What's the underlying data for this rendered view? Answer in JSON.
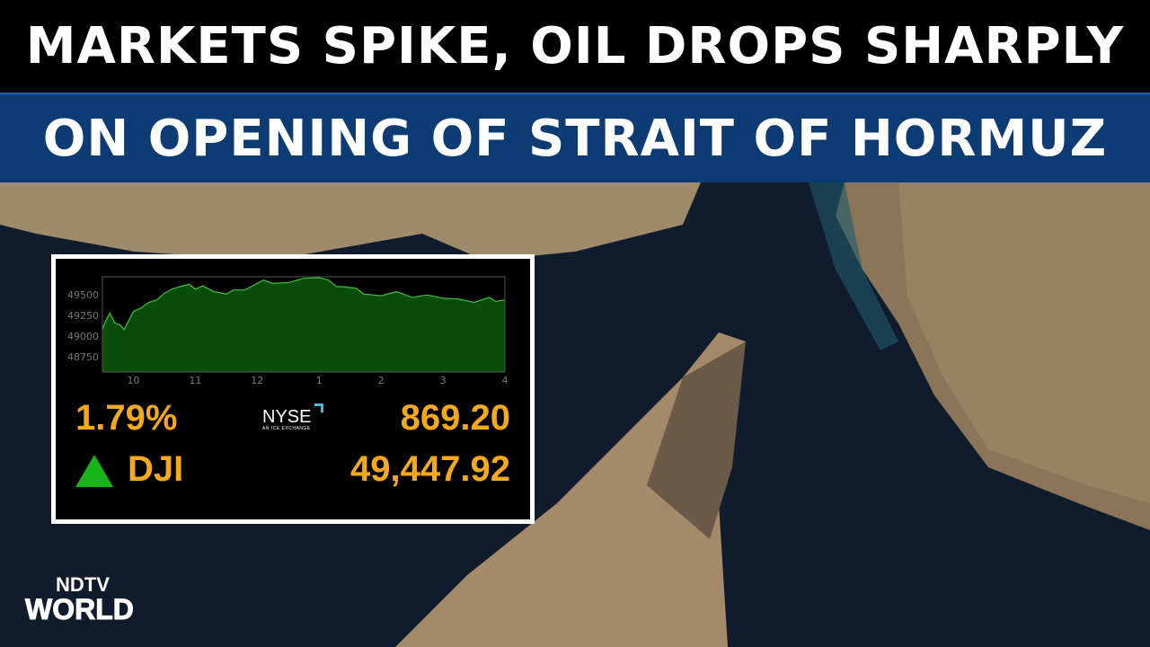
{
  "headline": {
    "line1": "MARKETS SPIKE, OIL DROPS SHARPLY",
    "line2": "ON OPENING OF STRAIT OF HORMUZ"
  },
  "ticker": {
    "change_pct": "1.79%",
    "price": "869.20",
    "symbol": "DJI",
    "index_value": "49,447.92",
    "exchange": "NYSE",
    "exchange_tagline": "AN ICE EXCHANGE",
    "direction": "up",
    "up_color": "#18b318",
    "value_color": "#f4a81c"
  },
  "logo": {
    "line1": "NDTV",
    "line2": "WORLD"
  },
  "chart_data": {
    "type": "area",
    "x_unit": "hour of day",
    "xticks": [
      {
        "x": 10,
        "label": "10"
      },
      {
        "x": 11,
        "label": "11"
      },
      {
        "x": 12,
        "label": "12"
      },
      {
        "x": 13,
        "label": "1"
      },
      {
        "x": 14,
        "label": "2"
      },
      {
        "x": 15,
        "label": "3"
      },
      {
        "x": 16,
        "label": "4"
      }
    ],
    "yticks": [
      48750,
      49000,
      49250,
      49500
    ],
    "xlim": [
      9.5,
      16
    ],
    "ylim": [
      48565,
      49720
    ],
    "fill_color": "#0a4d0a",
    "line_color": "#3fbf3f",
    "x": [
      9.5,
      9.55,
      9.62,
      9.7,
      9.78,
      9.85,
      9.92,
      10,
      10.12,
      10.25,
      10.38,
      10.5,
      10.62,
      10.75,
      10.9,
      11,
      11.12,
      11.3,
      11.5,
      11.62,
      11.8,
      12,
      12.1,
      12.25,
      12.5,
      12.75,
      13,
      13.15,
      13.28,
      13.38,
      13.6,
      13.72,
      14,
      14.25,
      14.5,
      14.75,
      15,
      15.25,
      15.5,
      15.75,
      15.85,
      16
    ],
    "y": [
      49080,
      49180,
      49280,
      49160,
      49140,
      49080,
      49180,
      49300,
      49340,
      49410,
      49440,
      49520,
      49570,
      49600,
      49630,
      49570,
      49610,
      49540,
      49510,
      49560,
      49560,
      49640,
      49680,
      49640,
      49650,
      49700,
      49710,
      49680,
      49600,
      49600,
      49580,
      49510,
      49490,
      49540,
      49470,
      49500,
      49460,
      49450,
      49410,
      49470,
      49420,
      49440
    ]
  }
}
